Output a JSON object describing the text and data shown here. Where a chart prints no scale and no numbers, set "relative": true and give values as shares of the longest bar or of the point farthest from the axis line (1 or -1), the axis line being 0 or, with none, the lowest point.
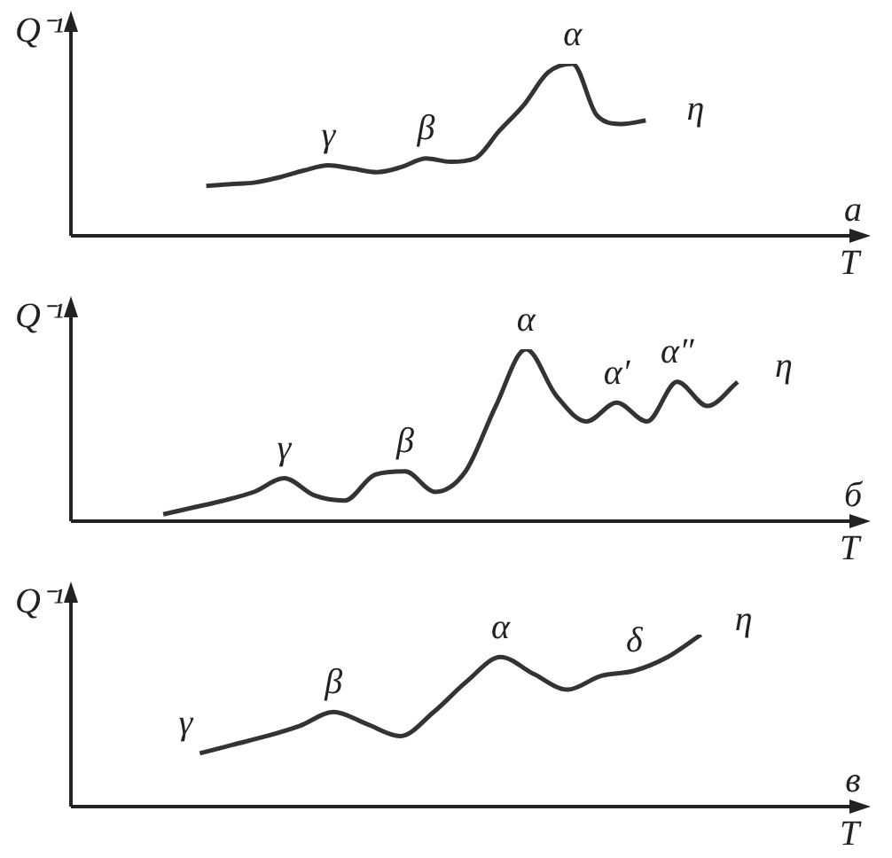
{
  "chart_data": [
    {
      "type": "line",
      "relative": true,
      "color": "#333333",
      "ylabel": "Q⁻¹",
      "xlabel": "T",
      "annotations": [
        "γ",
        "β",
        "α",
        "η",
        "а"
      ],
      "categories": [
        null,
        null,
        null,
        null,
        null,
        null,
        null,
        null,
        null,
        null,
        null,
        null,
        null,
        null,
        null,
        null,
        null,
        null,
        null,
        null,
        null,
        null,
        null,
        null,
        null,
        null,
        null
      ],
      "values": [
        null,
        null,
        null,
        0.29,
        0.3,
        0.31,
        0.34,
        0.38,
        0.41,
        0.39,
        0.37,
        0.4,
        0.45,
        0.43,
        0.45,
        0.61,
        0.76,
        0.95,
        1,
        0.7,
        0.65,
        0.67,
        null,
        null,
        null,
        null,
        null
      ]
    },
    {
      "type": "line",
      "relative": true,
      "color": "#333333",
      "ylabel": "Q⁻¹",
      "xlabel": "T",
      "annotations": [
        "γ",
        "β",
        "α",
        "α′",
        "α″",
        "η",
        "б"
      ],
      "categories": [
        null,
        null,
        null,
        null,
        null,
        null,
        null,
        null,
        null,
        null,
        null,
        null,
        null,
        null,
        null,
        null,
        null,
        null,
        null,
        null,
        null,
        null
      ],
      "values": [
        null,
        0.04,
        0.08,
        0.12,
        0.17,
        0.25,
        0.15,
        0.12,
        0.27,
        0.29,
        0.17,
        0.29,
        0.67,
        1,
        0.73,
        0.58,
        0.69,
        0.58,
        0.81,
        0.67,
        0.81,
        null
      ]
    },
    {
      "type": "line",
      "relative": true,
      "color": "#333333",
      "ylabel": "Q⁻¹",
      "xlabel": "T",
      "annotations": [
        "γ",
        "β",
        "α",
        "δ",
        "η",
        "в"
      ],
      "categories": [
        null,
        null,
        null,
        null,
        null,
        null,
        null,
        null,
        null,
        null,
        null,
        null,
        null,
        null,
        null,
        null,
        null,
        null,
        null,
        null
      ],
      "values": [
        null,
        null,
        0.31,
        0.36,
        0.41,
        0.47,
        0.55,
        0.48,
        0.41,
        0.55,
        0.73,
        0.87,
        0.77,
        0.68,
        0.76,
        0.79,
        0.87,
        1,
        null,
        null
      ]
    }
  ]
}
